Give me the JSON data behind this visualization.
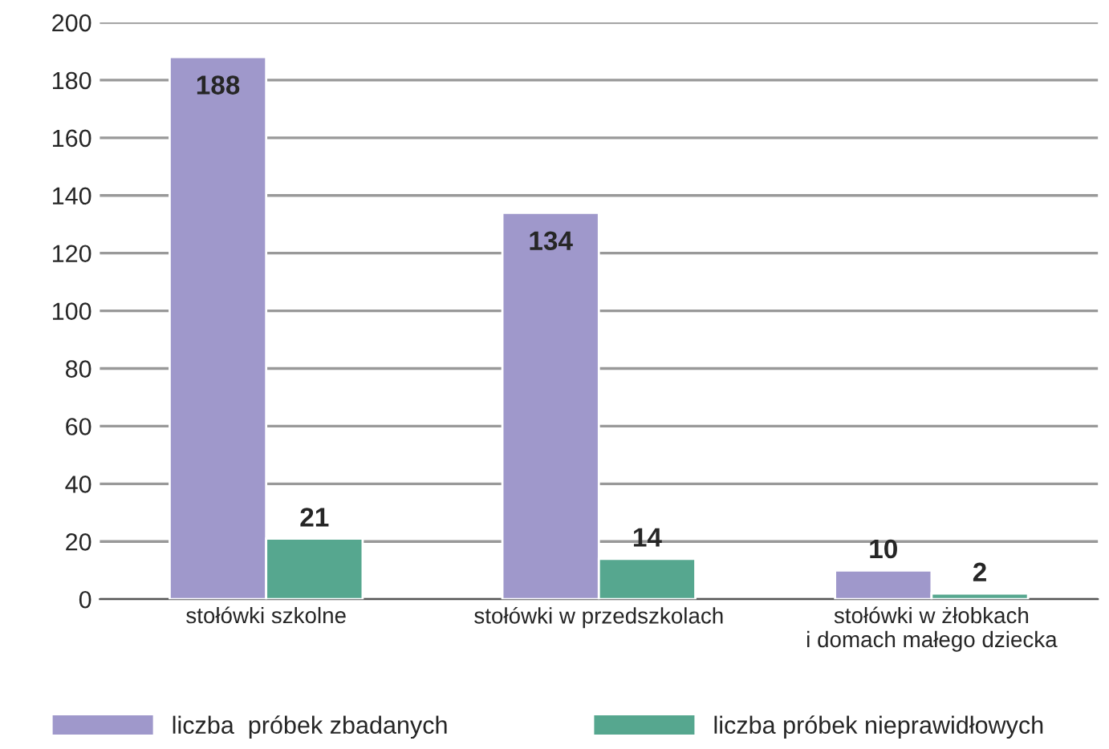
{
  "chart_data": {
    "type": "bar",
    "categories": [
      "stołówki szkolne",
      "stołówki w przedszkolach",
      "stołówki w żłobkach\ni domach małego dziecka"
    ],
    "series": [
      {
        "name": "liczba  próbek zbadanych",
        "color": "#9f98cb",
        "values": [
          188,
          134,
          10
        ]
      },
      {
        "name": "liczba próbek nieprawidłowych",
        "color": "#56a78f",
        "values": [
          21,
          14,
          2
        ]
      }
    ],
    "ylim": [
      0,
      200
    ],
    "yticks": [
      0,
      20,
      40,
      60,
      80,
      100,
      120,
      140,
      160,
      180,
      200
    ],
    "grid": "y",
    "legend": "bottom",
    "data_labels": true
  }
}
